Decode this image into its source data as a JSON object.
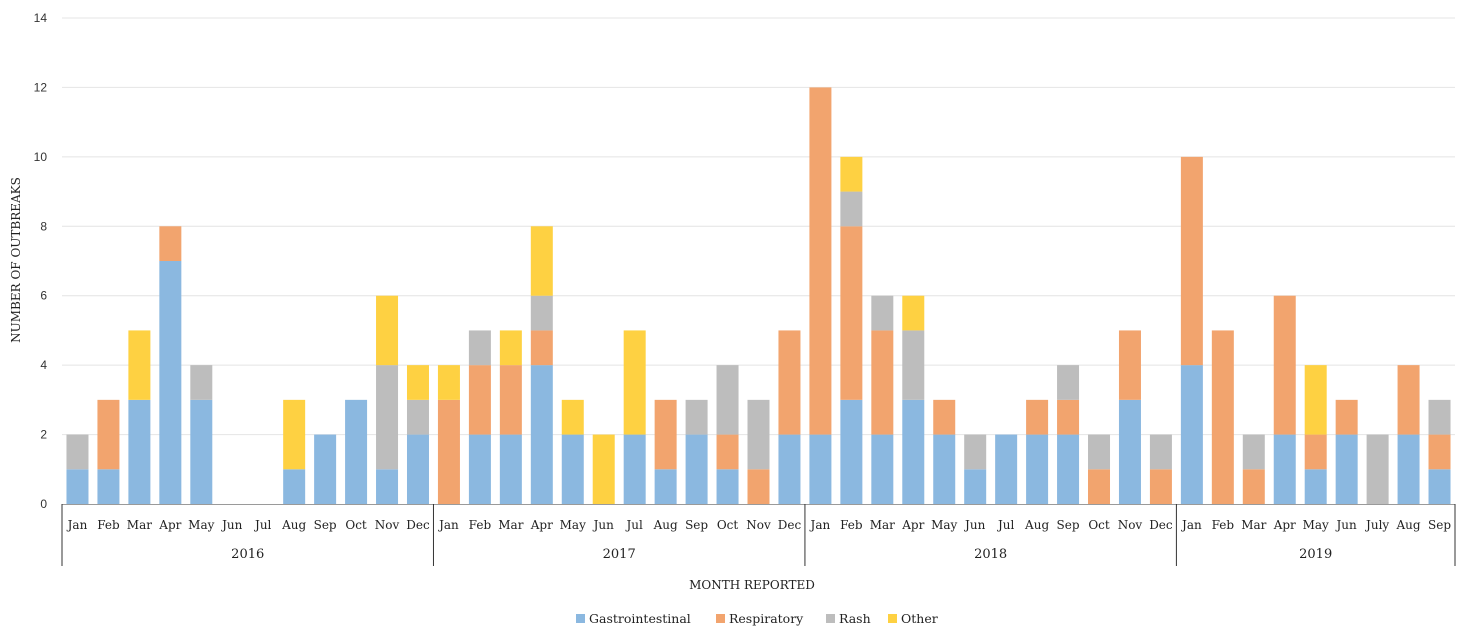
{
  "chart_data": {
    "type": "bar",
    "stacked": true,
    "xlabel": "MONTH REPORTED",
    "ylabel": "NUMBER OF OUTBREAKS",
    "ylim": [
      0,
      14
    ],
    "yticks": [
      0,
      2,
      4,
      6,
      8,
      10,
      12,
      14
    ],
    "grid": true,
    "legend_position": "bottom",
    "groups": [
      {
        "label": "2016",
        "months": [
          "Jan",
          "Feb",
          "Mar",
          "Apr",
          "May",
          "Jun",
          "Jul",
          "Aug",
          "Sep",
          "Oct",
          "Nov",
          "Dec"
        ]
      },
      {
        "label": "2017",
        "months": [
          "Jan",
          "Feb",
          "Mar",
          "Apr",
          "May",
          "Jun",
          "Jul",
          "Aug",
          "Sep",
          "Oct",
          "Nov",
          "Dec"
        ]
      },
      {
        "label": "2018",
        "months": [
          "Jan",
          "Feb",
          "Mar",
          "Apr",
          "May",
          "Jun",
          "Jul",
          "Aug",
          "Sep",
          "Oct",
          "Nov",
          "Dec"
        ]
      },
      {
        "label": "2019",
        "months": [
          "Jan",
          "Feb",
          "Mar",
          "Apr",
          "May",
          "Jun",
          "July",
          "Aug",
          "Sep"
        ]
      }
    ],
    "series": [
      {
        "name": "Gastrointestinal",
        "color": "#8bb8e0",
        "values": [
          1,
          1,
          3,
          7,
          3,
          0,
          0,
          1,
          2,
          3,
          1,
          2,
          0,
          2,
          2,
          4,
          2,
          0,
          2,
          1,
          2,
          1,
          0,
          2,
          2,
          3,
          2,
          3,
          2,
          1,
          2,
          2,
          2,
          0,
          3,
          0,
          4,
          0,
          0,
          2,
          1,
          2,
          0,
          2,
          1
        ]
      },
      {
        "name": "Respiratory",
        "color": "#f2a46e",
        "values": [
          0,
          2,
          0,
          1,
          0,
          0,
          0,
          0,
          0,
          0,
          0,
          0,
          3,
          2,
          2,
          1,
          0,
          0,
          0,
          2,
          0,
          1,
          1,
          3,
          10,
          5,
          3,
          0,
          1,
          0,
          0,
          1,
          1,
          1,
          2,
          1,
          6,
          5,
          1,
          4,
          1,
          1,
          0,
          2,
          1
        ]
      },
      {
        "name": "Rash",
        "color": "#bdbdbd",
        "values": [
          1,
          0,
          0,
          0,
          1,
          0,
          0,
          0,
          0,
          0,
          3,
          1,
          0,
          1,
          0,
          1,
          0,
          0,
          0,
          0,
          1,
          2,
          2,
          0,
          0,
          1,
          1,
          2,
          0,
          1,
          0,
          0,
          1,
          1,
          0,
          1,
          0,
          0,
          1,
          0,
          0,
          0,
          2,
          0,
          1
        ]
      },
      {
        "name": "Other",
        "color": "#fed142",
        "values": [
          0,
          0,
          2,
          0,
          0,
          0,
          0,
          2,
          0,
          0,
          2,
          1,
          1,
          0,
          1,
          2,
          1,
          2,
          3,
          0,
          0,
          0,
          0,
          0,
          0,
          1,
          0,
          1,
          0,
          0,
          0,
          0,
          0,
          0,
          0,
          0,
          0,
          0,
          0,
          0,
          2,
          0,
          0,
          0,
          0
        ]
      }
    ]
  }
}
